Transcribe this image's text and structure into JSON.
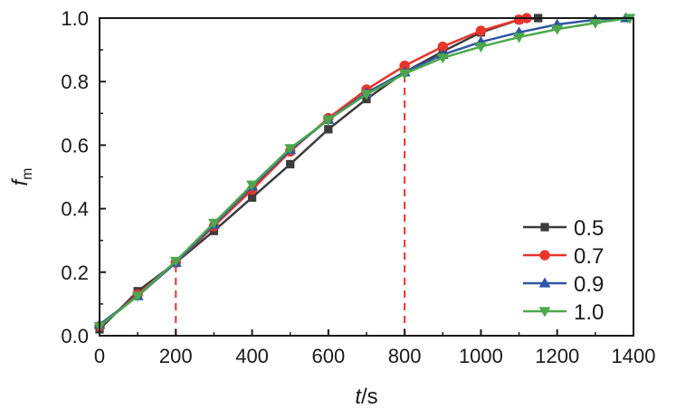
{
  "chart_data": {
    "type": "line",
    "title": "",
    "xlabel": {
      "italic": "t",
      "rest": "/s"
    },
    "ylabel": {
      "main": "f",
      "sub": "m"
    },
    "xlim": [
      0,
      1400
    ],
    "ylim": [
      0,
      1.0
    ],
    "xticks": [
      "0",
      "200",
      "400",
      "600",
      "800",
      "1000",
      "1200",
      "1400"
    ],
    "yticks": [
      "0.0",
      "0.2",
      "0.4",
      "0.6",
      "0.8",
      "1.0"
    ],
    "grid": false,
    "legend_position": "bottom-right",
    "reference_lines": [
      {
        "x": 200,
        "y": 0.23,
        "color": "#e8342a"
      },
      {
        "x": 800,
        "y": 0.83,
        "color": "#e8342a"
      }
    ],
    "series": [
      {
        "name": "0.5",
        "color": "#3d3b3b",
        "marker": "square",
        "x": [
          0,
          100,
          200,
          300,
          400,
          500,
          600,
          700,
          800,
          900,
          1000,
          1100,
          1150
        ],
        "y": [
          0.02,
          0.14,
          0.23,
          0.33,
          0.435,
          0.54,
          0.65,
          0.745,
          0.83,
          0.895,
          0.955,
          0.995,
          1.0
        ]
      },
      {
        "name": "0.7",
        "color": "#e8342a",
        "marker": "circle",
        "x": [
          0,
          100,
          200,
          300,
          400,
          500,
          600,
          700,
          800,
          900,
          1000,
          1100,
          1120
        ],
        "y": [
          0.03,
          0.13,
          0.23,
          0.345,
          0.46,
          0.58,
          0.685,
          0.775,
          0.85,
          0.91,
          0.96,
          0.995,
          1.0
        ]
      },
      {
        "name": "0.9",
        "color": "#2f55a4",
        "marker": "triangle-up",
        "x": [
          0,
          100,
          200,
          300,
          400,
          500,
          600,
          700,
          800,
          900,
          1000,
          1100,
          1200,
          1300,
          1380
        ],
        "y": [
          0.035,
          0.125,
          0.23,
          0.35,
          0.47,
          0.585,
          0.68,
          0.765,
          0.83,
          0.885,
          0.925,
          0.955,
          0.98,
          0.995,
          1.0
        ]
      },
      {
        "name": "1.0",
        "color": "#4aa84a",
        "marker": "triangle-down",
        "x": [
          0,
          100,
          200,
          300,
          400,
          500,
          600,
          700,
          800,
          900,
          1000,
          1100,
          1200,
          1300,
          1390
        ],
        "y": [
          0.03,
          0.125,
          0.235,
          0.355,
          0.475,
          0.59,
          0.68,
          0.76,
          0.825,
          0.875,
          0.91,
          0.94,
          0.965,
          0.985,
          1.0
        ]
      }
    ]
  }
}
